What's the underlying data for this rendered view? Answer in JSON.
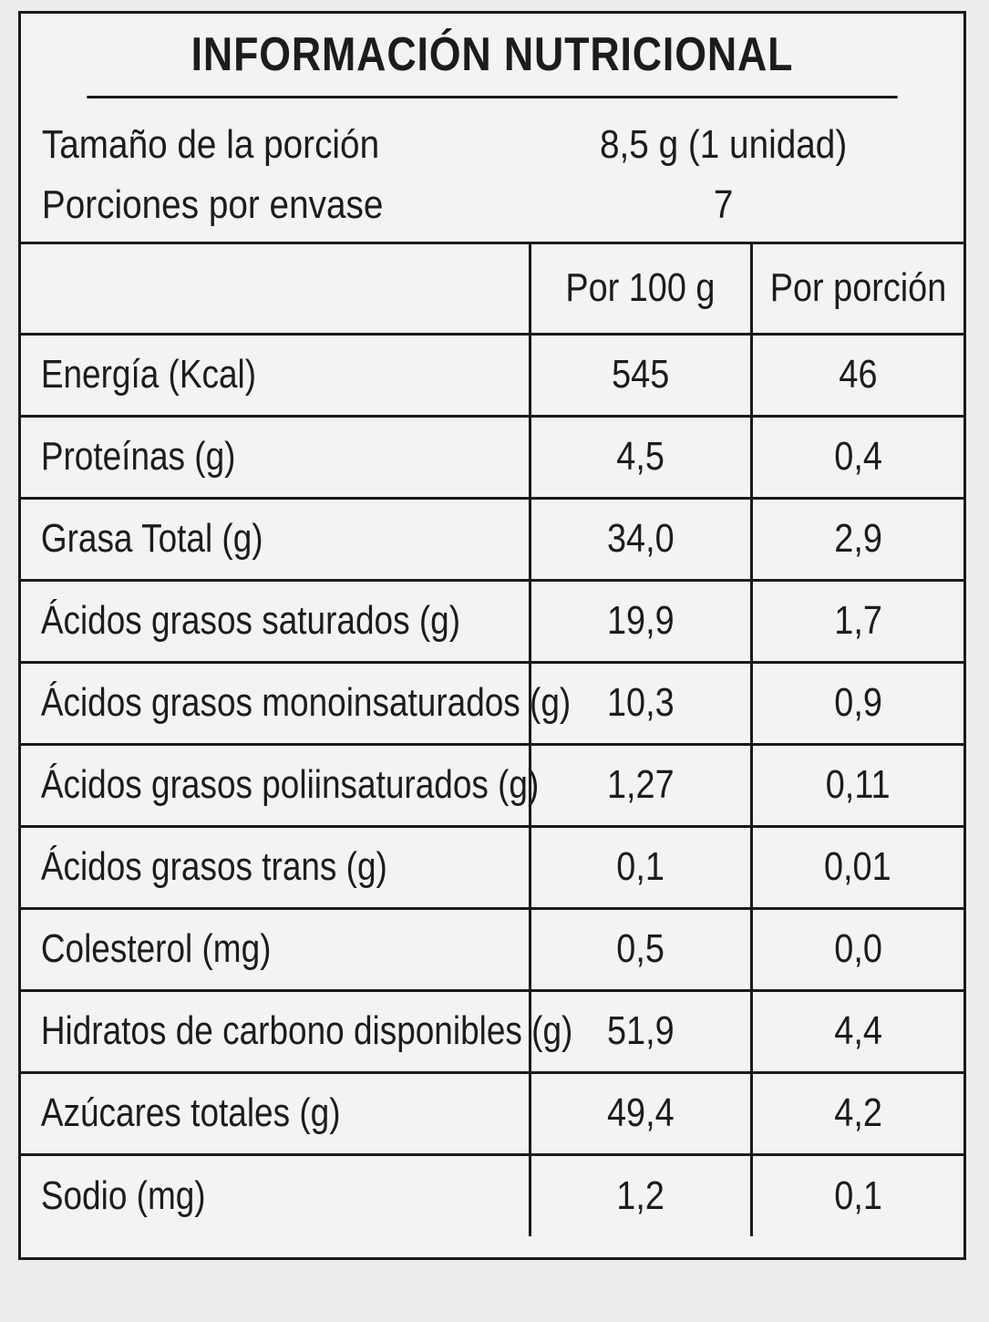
{
  "title": "INFORMACIÓN NUTRICIONAL",
  "serving": {
    "size_label": "Tamaño de la porción",
    "size_value": "8,5 g (1 unidad)",
    "per_container_label": "Porciones por envase",
    "per_container_value": "7"
  },
  "table": {
    "headers": [
      "",
      "Por 100 g",
      "Por porción"
    ],
    "rows": [
      {
        "name": "Energía (Kcal)",
        "per100": "545",
        "perServing": "46"
      },
      {
        "name": "Proteínas (g)",
        "per100": "4,5",
        "perServing": "0,4"
      },
      {
        "name": "Grasa Total (g)",
        "per100": "34,0",
        "perServing": "2,9"
      },
      {
        "name": "Ácidos grasos saturados (g)",
        "per100": "19,9",
        "perServing": "1,7"
      },
      {
        "name": "Ácidos grasos monoinsaturados (g)",
        "per100": "10,3",
        "perServing": "0,9"
      },
      {
        "name": "Ácidos grasos poliinsaturados (g)",
        "per100": "1,27",
        "perServing": "0,11"
      },
      {
        "name": "Ácidos grasos trans (g)",
        "per100": "0,1",
        "perServing": "0,01"
      },
      {
        "name": "Colesterol (mg)",
        "per100": "0,5",
        "perServing": "0,0"
      },
      {
        "name": "Hidratos de carbono disponibles (g)",
        "per100": "51,9",
        "perServing": "4,4"
      },
      {
        "name": "Azúcares totales (g)",
        "per100": "49,4",
        "perServing": "4,2"
      },
      {
        "name": "Sodio (mg)",
        "per100": "1,2",
        "perServing": "0,1"
      }
    ]
  }
}
